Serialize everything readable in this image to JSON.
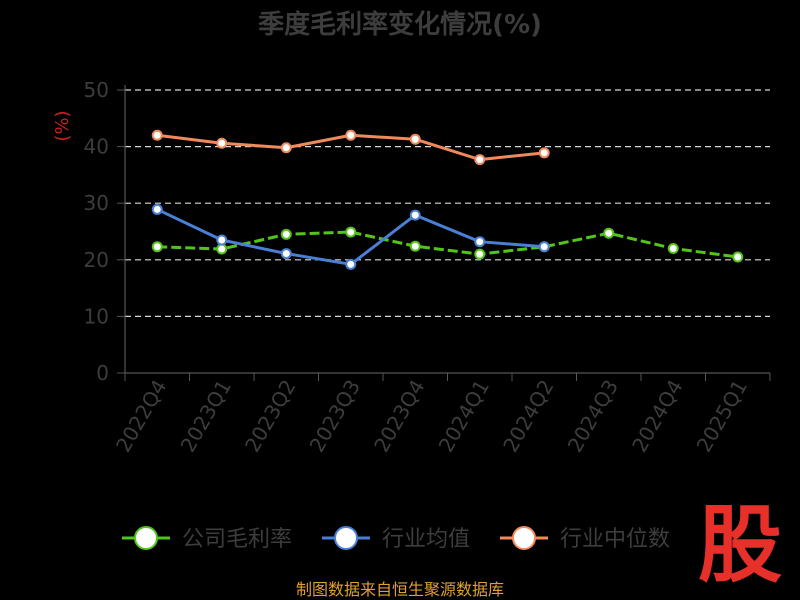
{
  "chart_data": {
    "type": "line",
    "title": "季度毛利率变化情况(%)",
    "ylabel": "(%)",
    "xlabel": "",
    "categories": [
      "2022Q4",
      "2023Q1",
      "2023Q2",
      "2023Q3",
      "2023Q4",
      "2024Q1",
      "2024Q2",
      "2024Q3",
      "2024Q4",
      "2025Q1"
    ],
    "ylim": [
      0,
      50
    ],
    "yticks": [
      0,
      10,
      20,
      30,
      40,
      50
    ],
    "grid": true,
    "legend_position": "bottom",
    "series": [
      {
        "name": "公司毛利率",
        "color": "#52c41a",
        "style": "dashed",
        "values": [
          22.3,
          21.9,
          24.5,
          24.9,
          22.4,
          21.0,
          22.3,
          24.7,
          22.0,
          20.5
        ]
      },
      {
        "name": "行业均值",
        "color": "#4a7fd6",
        "style": "solid",
        "values": [
          28.9,
          23.5,
          21.1,
          19.2,
          27.9,
          23.2,
          22.3,
          null,
          null,
          null
        ]
      },
      {
        "name": "行业中位数",
        "color": "#f08a5d",
        "style": "solid",
        "values": [
          42.0,
          40.6,
          39.8,
          42.0,
          41.3,
          37.7,
          38.9,
          null,
          null,
          null
        ]
      }
    ]
  },
  "footer": {
    "source": "制图数据来自恒生聚源数据库"
  },
  "logo": {
    "text": "股",
    "color": "#e8302a"
  }
}
